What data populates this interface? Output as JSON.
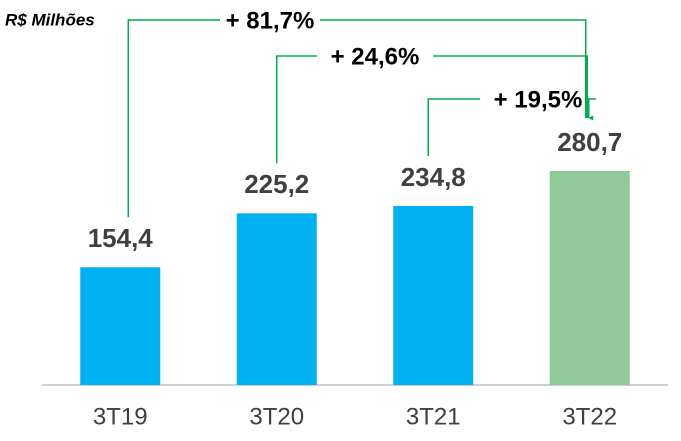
{
  "chart_data": {
    "type": "bar",
    "subtitle": "R$ Milhões",
    "categories": [
      "3T19",
      "3T20",
      "3T21",
      "3T22"
    ],
    "values": [
      154.4,
      225.2,
      234.8,
      280.7
    ],
    "value_labels": [
      "154,4",
      "225,2",
      "234,8",
      "280,7"
    ],
    "colors": [
      "#00b0f0",
      "#00b0f0",
      "#00b0f0",
      "#8fc99a"
    ],
    "annotations": [
      "+ 81,7%",
      "+ 24,6%",
      "+ 19,5%"
    ],
    "annotation_color": "#00b050"
  }
}
